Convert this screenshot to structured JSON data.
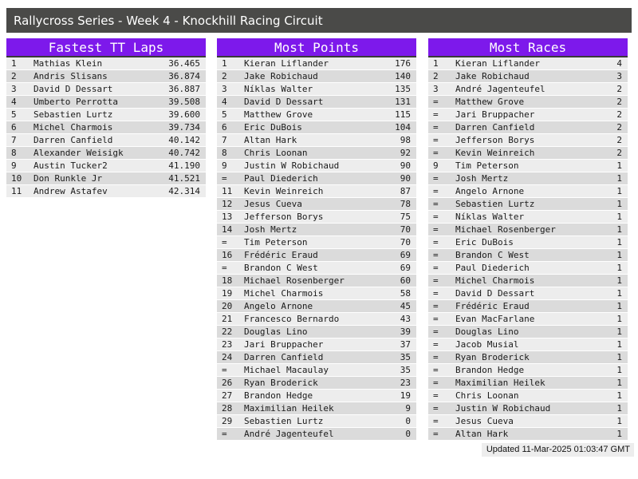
{
  "window": {
    "title": "Rallycross Series - Week 4 - Knockhill Racing Circuit"
  },
  "colors": {
    "accent_header": "#7D19EB",
    "title_bar": "#4A4A48",
    "row_odd": "#EDEDED",
    "row_even": "#DBDBDB",
    "header_underline": "#3A3A3A"
  },
  "tables": [
    {
      "title": "Fastest TT Laps",
      "rows": [
        [
          "1",
          "Mathias Klein",
          "36.465"
        ],
        [
          "2",
          "Andris Slisans",
          "36.874"
        ],
        [
          "3",
          "David D Dessart",
          "36.887"
        ],
        [
          "4",
          "Umberto Perrotta",
          "39.508"
        ],
        [
          "5",
          "Sebastien Lurtz",
          "39.600"
        ],
        [
          "6",
          "Michel Charmois",
          "39.734"
        ],
        [
          "7",
          "Darren Canfield",
          "40.142"
        ],
        [
          "8",
          "Alexander Weisigk",
          "40.742"
        ],
        [
          "9",
          "Austin Tucker2",
          "41.190"
        ],
        [
          "10",
          "Don Runkle Jr",
          "41.521"
        ],
        [
          "11",
          "Andrew Astafev",
          "42.314"
        ]
      ]
    },
    {
      "title": "Most Points",
      "rows": [
        [
          "1",
          "Kieran Liflander",
          "176"
        ],
        [
          "2",
          "Jake Robichaud",
          "140"
        ],
        [
          "3",
          "Níklas Walter",
          "135"
        ],
        [
          "4",
          "David D Dessart",
          "131"
        ],
        [
          "5",
          "Matthew Grove",
          "115"
        ],
        [
          "6",
          "Eric DuBois",
          "104"
        ],
        [
          "7",
          "Altan Hark",
          "98"
        ],
        [
          "8",
          "Chris Loonan",
          "92"
        ],
        [
          "9",
          "Justin W Robichaud",
          "90"
        ],
        [
          "=",
          "Paul Diederich",
          "90"
        ],
        [
          "11",
          "Kevin Weinreich",
          "87"
        ],
        [
          "12",
          "Jesus Cueva",
          "78"
        ],
        [
          "13",
          "Jefferson Borys",
          "75"
        ],
        [
          "14",
          "Josh Mertz",
          "70"
        ],
        [
          "=",
          "Tim Peterson",
          "70"
        ],
        [
          "16",
          "Frédéric Eraud",
          "69"
        ],
        [
          "=",
          "Brandon C West",
          "69"
        ],
        [
          "18",
          "Michael Rosenberger",
          "60"
        ],
        [
          "19",
          "Michel Charmois",
          "58"
        ],
        [
          "20",
          "Angelo Arnone",
          "45"
        ],
        [
          "21",
          "Francesco Bernardo",
          "43"
        ],
        [
          "22",
          "Douglas Lino",
          "39"
        ],
        [
          "23",
          "Jari Bruppacher",
          "37"
        ],
        [
          "24",
          "Darren Canfield",
          "35"
        ],
        [
          "=",
          "Michael Macaulay",
          "35"
        ],
        [
          "26",
          "Ryan Broderick",
          "23"
        ],
        [
          "27",
          "Brandon Hedge",
          "19"
        ],
        [
          "28",
          "Maximilian Heilek",
          "9"
        ],
        [
          "29",
          "Sebastien Lurtz",
          "0"
        ],
        [
          "=",
          "André Jagenteufel",
          "0"
        ]
      ]
    },
    {
      "title": "Most Races",
      "rows": [
        [
          "1",
          "Kieran Liflander",
          "4"
        ],
        [
          "2",
          "Jake Robichaud",
          "3"
        ],
        [
          "3",
          "André Jagenteufel",
          "2"
        ],
        [
          "=",
          "Matthew Grove",
          "2"
        ],
        [
          "=",
          "Jari Bruppacher",
          "2"
        ],
        [
          "=",
          "Darren Canfield",
          "2"
        ],
        [
          "=",
          "Jefferson Borys",
          "2"
        ],
        [
          "=",
          "Kevin Weinreich",
          "2"
        ],
        [
          "9",
          "Tim Peterson",
          "1"
        ],
        [
          "=",
          "Josh Mertz",
          "1"
        ],
        [
          "=",
          "Angelo Arnone",
          "1"
        ],
        [
          "=",
          "Sebastien Lurtz",
          "1"
        ],
        [
          "=",
          "Níklas Walter",
          "1"
        ],
        [
          "=",
          "Michael Rosenberger",
          "1"
        ],
        [
          "=",
          "Eric DuBois",
          "1"
        ],
        [
          "=",
          "Brandon C West",
          "1"
        ],
        [
          "=",
          "Paul Diederich",
          "1"
        ],
        [
          "=",
          "Michel Charmois",
          "1"
        ],
        [
          "=",
          "David D Dessart",
          "1"
        ],
        [
          "=",
          "Frédéric Eraud",
          "1"
        ],
        [
          "=",
          "Evan MacFarlane",
          "1"
        ],
        [
          "=",
          "Douglas Lino",
          "1"
        ],
        [
          "=",
          "Jacob Musial",
          "1"
        ],
        [
          "=",
          "Ryan Broderick",
          "1"
        ],
        [
          "=",
          "Brandon Hedge",
          "1"
        ],
        [
          "=",
          "Maximilian Heilek",
          "1"
        ],
        [
          "=",
          "Chris Loonan",
          "1"
        ],
        [
          "=",
          "Justin W Robichaud",
          "1"
        ],
        [
          "=",
          "Jesus Cueva",
          "1"
        ],
        [
          "=",
          "Altan Hark",
          "1"
        ]
      ]
    }
  ],
  "footer": {
    "updated": "Updated 11-Mar-2025 01:03:47 GMT"
  }
}
